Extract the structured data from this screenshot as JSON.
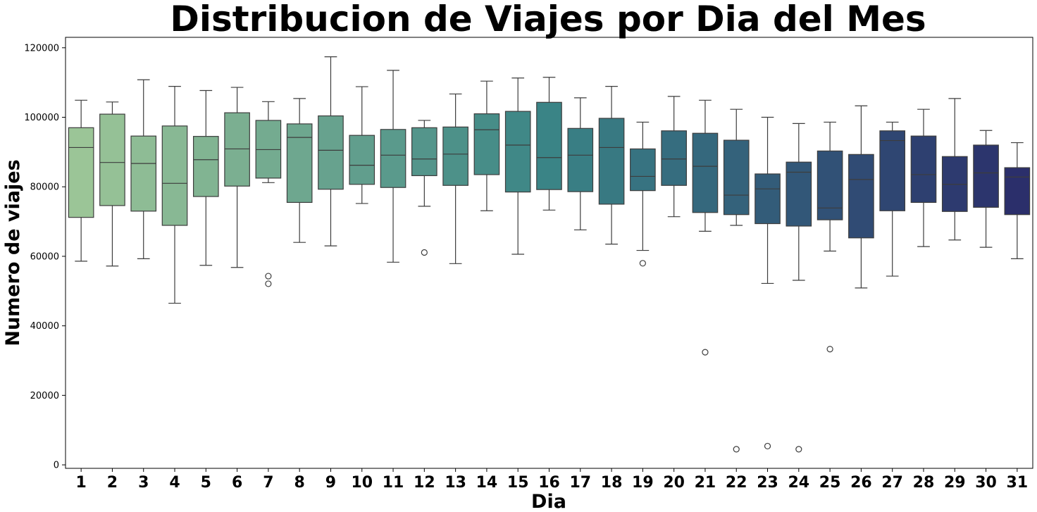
{
  "chart_data": {
    "type": "box",
    "title": "Distribucion de Viajes por Dia del Mes",
    "xlabel": "Dia",
    "ylabel": "Numero de viajes",
    "ylim": [
      -1000,
      123000
    ],
    "yticks": [
      0,
      20000,
      40000,
      60000,
      80000,
      100000,
      120000
    ],
    "grid": false,
    "legend": "none",
    "palette": {
      "start": "#9bc597",
      "end": "#2b2f6b"
    },
    "categories": [
      "1",
      "2",
      "3",
      "4",
      "5",
      "6",
      "7",
      "8",
      "9",
      "10",
      "11",
      "12",
      "13",
      "14",
      "15",
      "16",
      "17",
      "18",
      "19",
      "20",
      "21",
      "22",
      "23",
      "24",
      "25",
      "26",
      "27",
      "28",
      "29",
      "30",
      "31"
    ],
    "boxes": [
      {
        "q1": 71200,
        "median": 91300,
        "q3": 97000,
        "whisker_low": 58600,
        "whisker_high": 104900,
        "outliers": []
      },
      {
        "q1": 74600,
        "median": 87000,
        "q3": 100900,
        "whisker_low": 57200,
        "whisker_high": 104400,
        "outliers": []
      },
      {
        "q1": 73000,
        "median": 86700,
        "q3": 94600,
        "whisker_low": 59300,
        "whisker_high": 110800,
        "outliers": []
      },
      {
        "q1": 68900,
        "median": 81000,
        "q3": 97500,
        "whisker_low": 46500,
        "whisker_high": 108900,
        "outliers": []
      },
      {
        "q1": 77200,
        "median": 87800,
        "q3": 94500,
        "whisker_low": 57400,
        "whisker_high": 107700,
        "outliers": []
      },
      {
        "q1": 80200,
        "median": 90900,
        "q3": 101300,
        "whisker_low": 56800,
        "whisker_high": 108600,
        "outliers": []
      },
      {
        "q1": 82500,
        "median": 90700,
        "q3": 99100,
        "whisker_low": 81200,
        "whisker_high": 104500,
        "outliers": [
          54300,
          52100
        ]
      },
      {
        "q1": 75500,
        "median": 94200,
        "q3": 98100,
        "whisker_low": 64000,
        "whisker_high": 105400,
        "outliers": []
      },
      {
        "q1": 79300,
        "median": 90500,
        "q3": 100400,
        "whisker_low": 63000,
        "whisker_high": 117400,
        "outliers": []
      },
      {
        "q1": 80700,
        "median": 86200,
        "q3": 94800,
        "whisker_low": 75200,
        "whisker_high": 108800,
        "outliers": []
      },
      {
        "q1": 79800,
        "median": 89100,
        "q3": 96500,
        "whisker_low": 58300,
        "whisker_high": 113500,
        "outliers": []
      },
      {
        "q1": 83200,
        "median": 88000,
        "q3": 97000,
        "whisker_low": 74400,
        "whisker_high": 99100,
        "outliers": [
          61100
        ]
      },
      {
        "q1": 80400,
        "median": 89400,
        "q3": 97200,
        "whisker_low": 57900,
        "whisker_high": 106700,
        "outliers": []
      },
      {
        "q1": 83500,
        "median": 96400,
        "q3": 101000,
        "whisker_low": 73100,
        "whisker_high": 110400,
        "outliers": []
      },
      {
        "q1": 78500,
        "median": 92000,
        "q3": 101700,
        "whisker_low": 60600,
        "whisker_high": 111300,
        "outliers": []
      },
      {
        "q1": 79200,
        "median": 88400,
        "q3": 104300,
        "whisker_low": 73300,
        "whisker_high": 111500,
        "outliers": []
      },
      {
        "q1": 78600,
        "median": 89100,
        "q3": 96800,
        "whisker_low": 67600,
        "whisker_high": 105600,
        "outliers": []
      },
      {
        "q1": 75000,
        "median": 91300,
        "q3": 99700,
        "whisker_low": 63500,
        "whisker_high": 108900,
        "outliers": []
      },
      {
        "q1": 78900,
        "median": 83000,
        "q3": 90900,
        "whisker_low": 61700,
        "whisker_high": 98600,
        "outliers": [
          58000
        ]
      },
      {
        "q1": 80400,
        "median": 88000,
        "q3": 96100,
        "whisker_low": 71400,
        "whisker_high": 106000,
        "outliers": []
      },
      {
        "q1": 72600,
        "median": 85900,
        "q3": 95400,
        "whisker_low": 67200,
        "whisker_high": 104900,
        "outliers": [
          32400
        ]
      },
      {
        "q1": 72000,
        "median": 77600,
        "q3": 93400,
        "whisker_low": 68900,
        "whisker_high": 102300,
        "outliers": [
          4500
        ]
      },
      {
        "q1": 69400,
        "median": 79400,
        "q3": 83700,
        "whisker_low": 52200,
        "whisker_high": 100000,
        "outliers": [
          5400
        ]
      },
      {
        "q1": 68700,
        "median": 84200,
        "q3": 87100,
        "whisker_low": 53100,
        "whisker_high": 98200,
        "outliers": [
          4500
        ]
      },
      {
        "q1": 70500,
        "median": 73900,
        "q3": 90300,
        "whisker_low": 61500,
        "whisker_high": 98600,
        "outliers": [
          33300
        ]
      },
      {
        "q1": 65300,
        "median": 82100,
        "q3": 89300,
        "whisker_low": 50900,
        "whisker_high": 103300,
        "outliers": []
      },
      {
        "q1": 73100,
        "median": 93300,
        "q3": 96100,
        "whisker_low": 54300,
        "whisker_high": 98600,
        "outliers": []
      },
      {
        "q1": 75500,
        "median": 83500,
        "q3": 94600,
        "whisker_low": 62800,
        "whisker_high": 102300,
        "outliers": []
      },
      {
        "q1": 72900,
        "median": 80700,
        "q3": 88700,
        "whisker_low": 64700,
        "whisker_high": 105400,
        "outliers": []
      },
      {
        "q1": 74100,
        "median": 84000,
        "q3": 92000,
        "whisker_low": 62600,
        "whisker_high": 96200,
        "outliers": []
      },
      {
        "q1": 72000,
        "median": 82800,
        "q3": 85500,
        "whisker_low": 59300,
        "whisker_high": 92700,
        "outliers": []
      }
    ]
  }
}
